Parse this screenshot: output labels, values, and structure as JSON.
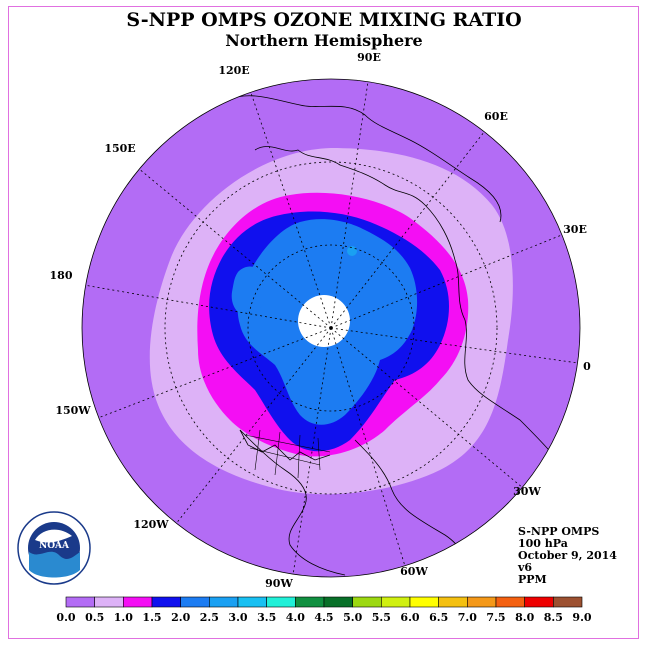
{
  "title": "S-NPP OMPS OZONE MIXING RATIO",
  "subtitle": "Northern Hemisphere",
  "longitude_labels": [
    "120E",
    "90E",
    "60E",
    "150E",
    "30E",
    "180",
    "0",
    "150W",
    "30W",
    "120W",
    "60W",
    "90W"
  ],
  "logo_text": "NOAA",
  "info": {
    "instrument": "S-NPP OMPS",
    "level": "100 hPa",
    "date": "October 9, 2014",
    "version": "v6",
    "units": "PPM"
  },
  "colorbar": {
    "ticks": [
      "0.0",
      "0.5",
      "1.0",
      "1.5",
      "2.0",
      "2.5",
      "3.0",
      "3.5",
      "4.0",
      "4.5",
      "5.0",
      "5.5",
      "6.0",
      "6.5",
      "7.0",
      "7.5",
      "8.0",
      "8.5",
      "9.0"
    ],
    "colors": [
      "#b36cf5",
      "#ddb2f7",
      "#f40ef4",
      "#1010ee",
      "#1c7cf2",
      "#1aa0f2",
      "#18c0f2",
      "#20f0d8",
      "#109040",
      "#087028",
      "#9cd810",
      "#d0f010",
      "#ffff00",
      "#f4c010",
      "#f49818",
      "#f46010",
      "#ee0000",
      "#9c5030"
    ]
  },
  "colors": {
    "background": "#b36cf5",
    "frame": "#e070e0",
    "no_data": "#ffffff"
  }
}
